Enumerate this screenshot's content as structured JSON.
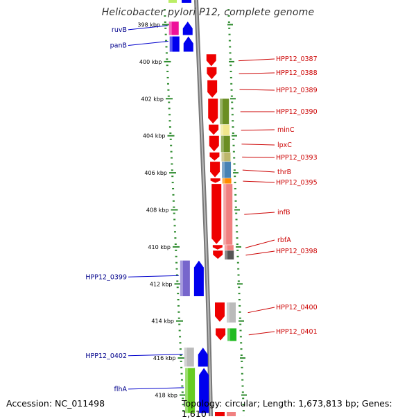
{
  "title": "Helicobacter pylori P12, complete genome",
  "accession": "Accession: NC_011498",
  "summary": "Topology: circular; Length: 1,673,813 bp; Genes: 1,610",
  "ticks": [
    {
      "label": "398 kbp",
      "kbp": 398
    },
    {
      "label": "400 kbp",
      "kbp": 400
    },
    {
      "label": "402 kbp",
      "kbp": 402
    },
    {
      "label": "404 kbp",
      "kbp": 404
    },
    {
      "label": "406 kbp",
      "kbp": 406
    },
    {
      "label": "408 kbp",
      "kbp": 408
    },
    {
      "label": "410 kbp",
      "kbp": 410
    },
    {
      "label": "412 kbp",
      "kbp": 412
    },
    {
      "label": "414 kbp",
      "kbp": 414
    },
    {
      "label": "416 kbp",
      "kbp": 416
    },
    {
      "label": "418 kbp",
      "kbp": 418
    }
  ],
  "left_genes": [
    {
      "name": "ruvB",
      "start": 397.8,
      "end": 398.6,
      "strand": "+",
      "color": "#0000ee",
      "track_color": "#ee1199"
    },
    {
      "name": "panB",
      "start": 398.6,
      "end": 399.5,
      "strand": "+",
      "color": "#0000ee",
      "track_color": "#0000ee"
    },
    {
      "name": "HPP12_0399",
      "start": 410.7,
      "end": 412.7,
      "strand": "+",
      "color": "#0000ee",
      "track_color": "#7766cc"
    },
    {
      "name": "HPP12_0402",
      "start": 415.4,
      "end": 416.5,
      "strand": "+",
      "color": "#0000ee",
      "track_color": "#bbbbbb"
    },
    {
      "name": "flhA",
      "start": 416.5,
      "end": 419.0,
      "strand": "+",
      "color": "#0000ee",
      "track_color": "#66cc22"
    }
  ],
  "right_genes": [
    {
      "name": "HPP12_0387",
      "start": 399.6,
      "end": 400.3,
      "strand": "-",
      "color": "#ee0000",
      "track_color": "#ffffff"
    },
    {
      "name": "HPP12_0388",
      "start": 400.3,
      "end": 401.0,
      "strand": "-",
      "color": "#ee0000",
      "track_color": "#ffffff"
    },
    {
      "name": "HPP12_0389",
      "start": 401.0,
      "end": 402.0,
      "strand": "-",
      "color": "#ee0000",
      "track_color": "#ffffff"
    },
    {
      "name": "HPP12_0390",
      "start": 402.0,
      "end": 403.4,
      "strand": "-",
      "color": "#ee0000",
      "track_color": "#6b8e23"
    },
    {
      "name": "minC",
      "start": 403.4,
      "end": 404.0,
      "strand": "-",
      "color": "#ee0000",
      "track_color": "#f0e68c"
    },
    {
      "name": "lpxC",
      "start": 404.0,
      "end": 404.9,
      "strand": "-",
      "color": "#ee0000",
      "track_color": "#6b8e23"
    },
    {
      "name": "HPP12_0393",
      "start": 404.9,
      "end": 405.4,
      "strand": "-",
      "color": "#ee0000",
      "track_color": "#bdb76b"
    },
    {
      "name": "thrB",
      "start": 405.4,
      "end": 406.3,
      "strand": "-",
      "color": "#ee0000",
      "track_color": "#4682b4"
    },
    {
      "name": "HPP12_0395",
      "start": 406.3,
      "end": 406.6,
      "strand": "-",
      "color": "#ee0000",
      "track_color": "#ff8c00"
    },
    {
      "name": "infB",
      "start": 406.6,
      "end": 409.9,
      "strand": "-",
      "color": "#ee0000",
      "track_color": "#f08080"
    },
    {
      "name": "rbfA",
      "start": 409.9,
      "end": 410.2,
      "strand": "-",
      "color": "#ee0000",
      "track_color": "#f08080"
    },
    {
      "name": "HPP12_0398",
      "start": 410.2,
      "end": 410.7,
      "strand": "-",
      "color": "#ee0000",
      "track_color": "#555555"
    },
    {
      "name": "HPP12_0400",
      "start": 413.0,
      "end": 414.1,
      "strand": "-",
      "color": "#ee0000",
      "track_color": "#bbbbbb"
    },
    {
      "name": "HPP12_0401",
      "start": 414.4,
      "end": 415.1,
      "strand": "-",
      "color": "#ee0000",
      "track_color": "#22bb22"
    }
  ]
}
